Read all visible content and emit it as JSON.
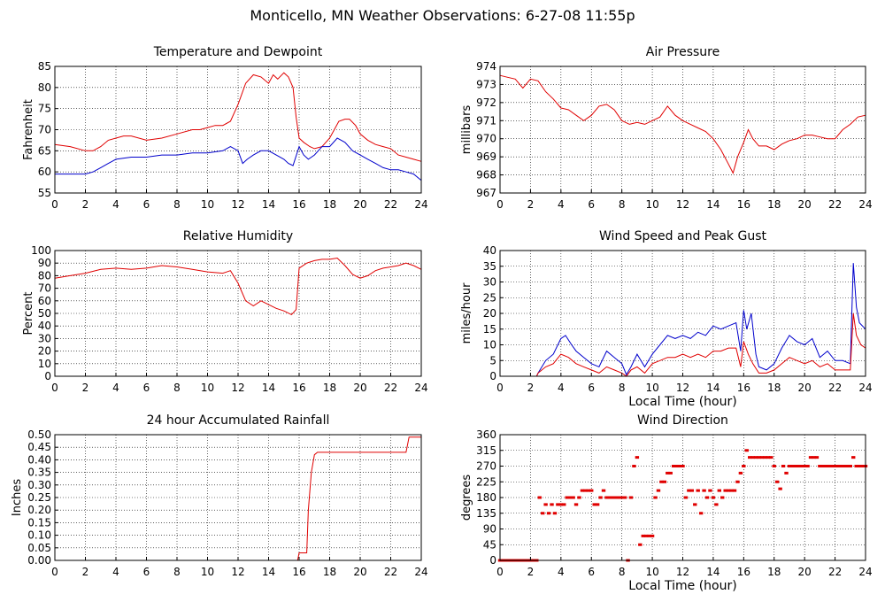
{
  "page": {
    "title": "Monticello, MN Weather Observations: 6-27-08 11:55p"
  },
  "colors": {
    "series_red": "#e00000",
    "series_blue": "#0000cc",
    "grid": "#000000"
  },
  "chart_data": [
    {
      "id": "temp",
      "type": "line",
      "title": "Temperature and Dewpoint",
      "xlabel": "",
      "ylabel": "Fahrenheit",
      "xlim": [
        0,
        24
      ],
      "ylim": [
        55,
        85
      ],
      "xticks": [
        0,
        2,
        4,
        6,
        8,
        10,
        12,
        14,
        16,
        18,
        20,
        22,
        24
      ],
      "yticks": [
        55,
        60,
        65,
        70,
        75,
        80,
        85
      ],
      "ytick_labels": [
        "55",
        "60",
        "65",
        "70",
        "75",
        "80",
        "85"
      ],
      "grid": true,
      "series": [
        {
          "color": "#e00000",
          "mode": "line",
          "x": [
            0,
            1,
            2,
            2.5,
            3,
            3.5,
            4,
            4.5,
            5,
            6,
            7,
            8,
            9,
            9.5,
            10,
            10.5,
            11,
            11.5,
            12,
            12.5,
            13,
            13.5,
            14,
            14.3,
            14.6,
            15,
            15.3,
            15.6,
            15.8,
            16,
            16.3,
            16.7,
            17,
            17.5,
            18,
            18.3,
            18.6,
            19,
            19.3,
            19.7,
            20,
            20.5,
            21,
            21.5,
            22,
            22.5,
            23,
            23.5,
            24
          ],
          "y": [
            66.5,
            66,
            65,
            65,
            66,
            67.5,
            68,
            68.5,
            68.5,
            67.5,
            68,
            69,
            70,
            70,
            70.5,
            71,
            71,
            72,
            76,
            81,
            83,
            82.5,
            81,
            83,
            82,
            83.5,
            82.5,
            80,
            73,
            68,
            67,
            66,
            65.5,
            66,
            68,
            70,
            72,
            72.5,
            72.5,
            71,
            69,
            67.5,
            66.5,
            66,
            65.5,
            64,
            63.5,
            63,
            62.5
          ]
        },
        {
          "color": "#0000cc",
          "mode": "line",
          "x": [
            0,
            1,
            2,
            2.5,
            3,
            3.5,
            4,
            5,
            6,
            7,
            8,
            9,
            10,
            11,
            11.5,
            12,
            12.3,
            12.6,
            13,
            13.5,
            14,
            14.5,
            15,
            15.3,
            15.6,
            16,
            16.3,
            16.6,
            17,
            17.5,
            18,
            18.5,
            19,
            19.5,
            20,
            20.5,
            21,
            21.5,
            22,
            22.5,
            23,
            23.5,
            24
          ],
          "y": [
            59.5,
            59.5,
            59.5,
            60,
            61,
            62,
            63,
            63.5,
            63.5,
            64,
            64,
            64.5,
            64.5,
            65,
            66,
            65,
            62,
            63,
            64,
            65,
            65,
            64,
            63,
            62,
            61.5,
            66,
            64,
            63,
            64,
            66,
            66,
            68,
            67,
            65,
            64,
            63,
            62,
            61,
            60.5,
            60.5,
            60,
            59.5,
            58
          ]
        }
      ]
    },
    {
      "id": "pressure",
      "type": "line",
      "title": "Air Pressure",
      "xlabel": "",
      "ylabel": "millibars",
      "xlim": [
        0,
        24
      ],
      "ylim": [
        967,
        974
      ],
      "xticks": [
        0,
        2,
        4,
        6,
        8,
        10,
        12,
        14,
        16,
        18,
        20,
        22,
        24
      ],
      "yticks": [
        967,
        968,
        969,
        970,
        971,
        972,
        973,
        974
      ],
      "ytick_labels": [
        "967",
        "968",
        "969",
        "970",
        "971",
        "972",
        "973",
        "974"
      ],
      "grid": true,
      "series": [
        {
          "color": "#e00000",
          "mode": "line",
          "x": [
            0,
            0.5,
            1,
            1.5,
            2,
            2.5,
            3,
            3.5,
            4,
            4.5,
            5,
            5.5,
            6,
            6.5,
            7,
            7.5,
            8,
            8.5,
            9,
            9.5,
            10,
            10.5,
            11,
            11.5,
            12,
            12.5,
            13,
            13.5,
            14,
            14.5,
            15,
            15.3,
            15.6,
            16,
            16.3,
            16.6,
            17,
            17.5,
            18,
            18.5,
            19,
            19.5,
            20,
            20.5,
            21,
            21.5,
            22,
            22.5,
            23,
            23.5,
            24
          ],
          "y": [
            973.5,
            973.4,
            973.3,
            972.8,
            973.3,
            973.2,
            972.6,
            972.2,
            971.7,
            971.6,
            971.3,
            971,
            971.3,
            971.8,
            971.9,
            971.6,
            971,
            970.8,
            970.9,
            970.8,
            971,
            971.2,
            971.8,
            971.3,
            971,
            970.8,
            970.6,
            970.4,
            970,
            969.4,
            968.6,
            968.1,
            969,
            969.8,
            970.5,
            970,
            969.6,
            969.6,
            969.4,
            969.7,
            969.9,
            970,
            970.2,
            970.2,
            970.1,
            970,
            970,
            970.5,
            970.8,
            971.2,
            971.3
          ]
        }
      ]
    },
    {
      "id": "humidity",
      "type": "line",
      "title": "Relative Humidity",
      "xlabel": "",
      "ylabel": "Percent",
      "xlim": [
        0,
        24
      ],
      "ylim": [
        0,
        100
      ],
      "xticks": [
        0,
        2,
        4,
        6,
        8,
        10,
        12,
        14,
        16,
        18,
        20,
        22,
        24
      ],
      "yticks": [
        0,
        10,
        20,
        30,
        40,
        50,
        60,
        70,
        80,
        90,
        100
      ],
      "ytick_labels": [
        "0",
        "10",
        "20",
        "30",
        "40",
        "50",
        "60",
        "70",
        "80",
        "90",
        "100"
      ],
      "grid": true,
      "series": [
        {
          "color": "#e00000",
          "mode": "line",
          "x": [
            0,
            1,
            2,
            3,
            4,
            5,
            6,
            7,
            8,
            9,
            10,
            11,
            11.5,
            12,
            12.5,
            13,
            13.5,
            14,
            14.5,
            15,
            15.5,
            15.8,
            16,
            16.5,
            17,
            17.5,
            18,
            18.5,
            19,
            19.5,
            20,
            20.5,
            21,
            21.5,
            22,
            22.5,
            23,
            23.5,
            24
          ],
          "y": [
            78,
            80,
            82,
            85,
            86,
            85,
            86,
            88,
            87,
            85,
            83,
            82,
            84,
            74,
            60,
            56,
            60,
            57,
            54,
            52,
            49,
            53,
            86,
            90,
            92,
            93,
            93,
            94,
            88,
            81,
            78,
            80,
            84,
            86,
            87,
            88,
            90,
            88,
            85
          ]
        }
      ]
    },
    {
      "id": "wind",
      "type": "line",
      "title": "Wind Speed and Peak Gust",
      "xlabel": "Local Time (hour)",
      "ylabel": "miles/hour",
      "xlim": [
        0,
        24
      ],
      "ylim": [
        0,
        40
      ],
      "xticks": [
        0,
        2,
        4,
        6,
        8,
        10,
        12,
        14,
        16,
        18,
        20,
        22,
        24
      ],
      "yticks": [
        0,
        5,
        10,
        15,
        20,
        25,
        30,
        35,
        40
      ],
      "ytick_labels": [
        "0",
        "5",
        "10",
        "15",
        "20",
        "25",
        "30",
        "35",
        "40"
      ],
      "grid": true,
      "series": [
        {
          "color": "#0000cc",
          "mode": "line",
          "x": [
            0,
            2.4,
            2.5,
            3,
            3.5,
            4,
            4.3,
            4.7,
            5,
            5.5,
            6,
            6.5,
            7,
            7.5,
            8,
            8.3,
            8.6,
            9,
            9.5,
            10,
            10.5,
            11,
            11.5,
            12,
            12.5,
            13,
            13.5,
            14,
            14.5,
            15,
            15.5,
            15.8,
            16,
            16.2,
            16.5,
            16.8,
            17,
            17.5,
            18,
            18.5,
            19,
            19.5,
            20,
            20.5,
            21,
            21.5,
            22,
            22.5,
            23,
            23.2,
            23.4,
            23.6,
            24
          ],
          "y": [
            0,
            0,
            1,
            5,
            7,
            12,
            13,
            10,
            8,
            6,
            4,
            3,
            8,
            6,
            4,
            0.5,
            3,
            7,
            3,
            7,
            10,
            13,
            12,
            13,
            12,
            14,
            13,
            16,
            15,
            16,
            17,
            8,
            21,
            15,
            20,
            7,
            3,
            2,
            4,
            9,
            13,
            11,
            10,
            12,
            6,
            8,
            5,
            5,
            4,
            36,
            22,
            17,
            15
          ]
        },
        {
          "color": "#e00000",
          "mode": "line",
          "x": [
            0,
            2.4,
            2.5,
            3,
            3.5,
            4,
            4.5,
            5,
            5.5,
            6,
            6.5,
            7,
            7.5,
            8,
            8.3,
            8.6,
            9,
            9.5,
            10,
            10.5,
            11,
            11.5,
            12,
            12.5,
            13,
            13.5,
            14,
            14.5,
            15,
            15.5,
            15.8,
            16,
            16.3,
            16.6,
            17,
            17.5,
            18,
            18.5,
            19,
            19.5,
            20,
            20.5,
            21,
            21.5,
            22,
            22.5,
            23,
            23.2,
            23.4,
            23.7,
            24
          ],
          "y": [
            0,
            0,
            1,
            3,
            4,
            7,
            6,
            4,
            3,
            2,
            1,
            3,
            2,
            1,
            0,
            2,
            3,
            1,
            4,
            5,
            6,
            6,
            7,
            6,
            7,
            6,
            8,
            8,
            9,
            9,
            3,
            11,
            7,
            4,
            1,
            1,
            2,
            4,
            6,
            5,
            4,
            5,
            3,
            4,
            2,
            2,
            2,
            20,
            13,
            10,
            9
          ]
        }
      ]
    },
    {
      "id": "rain",
      "type": "line",
      "title": "24 hour Accumulated Rainfall",
      "xlabel": "",
      "ylabel": "Inches",
      "xlim": [
        0,
        24
      ],
      "ylim": [
        0,
        0.5
      ],
      "xticks": [
        0,
        2,
        4,
        6,
        8,
        10,
        12,
        14,
        16,
        18,
        20,
        22,
        24
      ],
      "yticks": [
        0,
        0.05,
        0.1,
        0.15,
        0.2,
        0.25,
        0.3,
        0.35,
        0.4,
        0.45,
        0.5
      ],
      "ytick_labels": [
        "0.00",
        "0.05",
        "0.10",
        "0.15",
        "0.20",
        "0.25",
        "0.30",
        "0.35",
        "0.40",
        "0.45",
        "0.50"
      ],
      "grid": true,
      "series": [
        {
          "color": "#e00000",
          "mode": "line",
          "x": [
            0,
            15.9,
            16,
            16.5,
            16.6,
            16.8,
            17,
            17.2,
            23,
            23.1,
            23.2,
            24
          ],
          "y": [
            0,
            0,
            0.03,
            0.03,
            0.2,
            0.35,
            0.42,
            0.43,
            0.43,
            0.46,
            0.49,
            0.49
          ]
        }
      ]
    },
    {
      "id": "direction",
      "type": "scatter",
      "title": "Wind Direction",
      "xlabel": "Local Time (hour)",
      "ylabel": "degrees",
      "xlim": [
        0,
        24
      ],
      "ylim": [
        0,
        360
      ],
      "xticks": [
        0,
        2,
        4,
        6,
        8,
        10,
        12,
        14,
        16,
        18,
        20,
        22,
        24
      ],
      "yticks": [
        0,
        45,
        90,
        135,
        180,
        225,
        270,
        315,
        360
      ],
      "ytick_labels": [
        "0",
        "45",
        "90",
        "135",
        "180",
        "225",
        "270",
        "315",
        "360"
      ],
      "grid": true,
      "series": [
        {
          "color": "#e00000",
          "mode": "points",
          "x": [
            0,
            0.2,
            0.4,
            0.6,
            0.8,
            1,
            1.2,
            1.4,
            1.6,
            1.8,
            2,
            2.2,
            2.4,
            2.6,
            2.8,
            3,
            3.2,
            3.4,
            3.6,
            3.8,
            4,
            4.2,
            4.4,
            4.6,
            4.8,
            5,
            5.2,
            5.4,
            5.6,
            5.8,
            6,
            6.2,
            6.4,
            6.6,
            6.8,
            7,
            7.2,
            7.4,
            7.6,
            7.8,
            8,
            8.2,
            8.4,
            8.6,
            8.8,
            9,
            9.2,
            9.4,
            9.6,
            9.8,
            10,
            10.2,
            10.4,
            10.6,
            10.8,
            11,
            11.2,
            11.4,
            11.6,
            11.8,
            12,
            12.2,
            12.4,
            12.6,
            12.8,
            13,
            13.2,
            13.4,
            13.6,
            13.8,
            14,
            14.2,
            14.4,
            14.6,
            14.8,
            15,
            15.2,
            15.4,
            15.6,
            15.8,
            16,
            16.2,
            16.4,
            16.6,
            16.8,
            17,
            17.2,
            17.4,
            17.6,
            17.8,
            18,
            18.2,
            18.4,
            18.6,
            18.8,
            19,
            19.2,
            19.4,
            19.6,
            19.8,
            20,
            20.2,
            20.4,
            20.6,
            20.8,
            21,
            21.2,
            21.4,
            21.6,
            21.8,
            22,
            22.2,
            22.4,
            22.6,
            22.8,
            23,
            23.2,
            23.4,
            23.6,
            23.8,
            24
          ],
          "y": [
            0,
            0,
            0,
            0,
            0,
            0,
            0,
            0,
            0,
            0,
            0,
            0,
            0,
            180,
            135,
            160,
            135,
            160,
            135,
            160,
            160,
            160,
            180,
            180,
            180,
            160,
            180,
            200,
            200,
            200,
            200,
            160,
            160,
            180,
            200,
            180,
            180,
            180,
            180,
            180,
            180,
            180,
            0,
            180,
            270,
            295,
            45,
            70,
            70,
            70,
            70,
            180,
            200,
            225,
            225,
            250,
            250,
            270,
            270,
            270,
            270,
            180,
            200,
            200,
            160,
            200,
            135,
            200,
            180,
            200,
            180,
            160,
            200,
            180,
            200,
            200,
            200,
            200,
            225,
            250,
            270,
            315,
            295,
            295,
            295,
            295,
            295,
            295,
            295,
            295,
            270,
            225,
            205,
            270,
            250,
            270,
            270,
            270,
            270,
            270,
            270,
            270,
            295,
            295,
            295,
            270,
            270,
            270,
            270,
            270,
            270,
            270,
            270,
            270,
            270,
            270,
            295,
            270,
            270,
            270,
            270
          ]
        }
      ]
    }
  ]
}
